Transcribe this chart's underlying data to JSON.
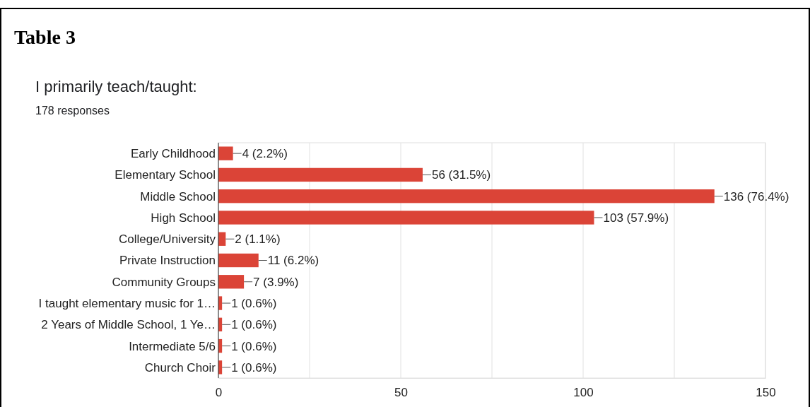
{
  "chart_data": {
    "type": "bar",
    "orientation": "horizontal",
    "title": "Table 3",
    "subtitle": "I primarily teach/taught:",
    "annotations": [
      "178 responses"
    ],
    "categories": [
      "Early Childhood",
      "Elementary School",
      "Middle School",
      "High School",
      "College/University",
      "Private Instruction",
      "Community Groups",
      "I taught elementary music for 1…",
      "2 Years of Middle School, 1 Ye…",
      "Intermediate 5/6",
      "Church Choir"
    ],
    "values": [
      4,
      56,
      136,
      103,
      2,
      11,
      7,
      1,
      1,
      1,
      1
    ],
    "value_labels": [
      "4 (2.2%)",
      "56 (31.5%)",
      "136 (76.4%)",
      "103 (57.9%)",
      "2 (1.1%)",
      "11 (6.2%)",
      "7 (3.9%)",
      "1 (0.6%)",
      "1 (0.6%)",
      "1 (0.6%)",
      "1 (0.6%)"
    ],
    "color": "#db4437",
    "xlim": [
      0,
      150
    ],
    "xticks": [
      0,
      {
        "value": 25,
        "label": null
      },
      50,
      {
        "value": 75,
        "label": null
      },
      100,
      {
        "value": 125,
        "label": null
      },
      150
    ],
    "grid": "x"
  }
}
